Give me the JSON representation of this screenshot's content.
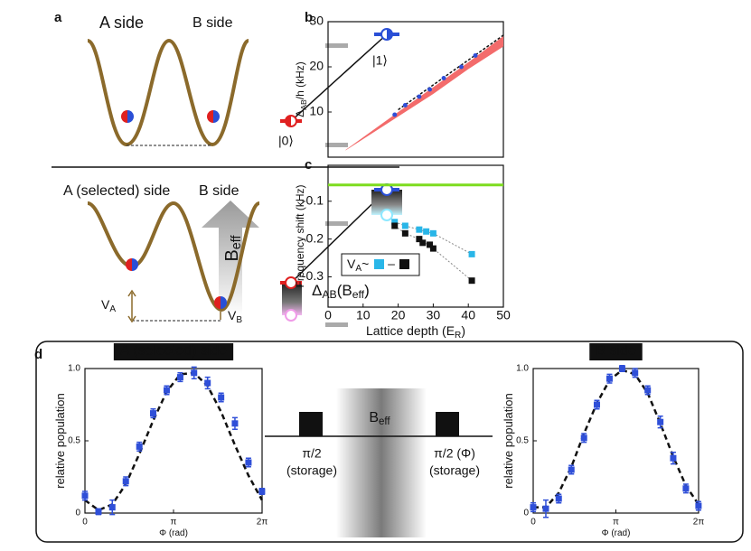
{
  "panel_labels": [
    "a",
    "b",
    "c",
    "d"
  ],
  "diagram": {
    "top": {
      "a_side": "A side",
      "b_side": "B side",
      "ket0": "|0⟩",
      "ket1": "|1⟩"
    },
    "bottom": {
      "a_side": "A (selected) side",
      "b_side": "B side",
      "field": [
        "B",
        "eff"
      ],
      "va": [
        "V",
        "A"
      ],
      "vb": [
        "V",
        "B"
      ],
      "splitting": [
        "Δ",
        "AB",
        "(B",
        "eff",
        ")"
      ]
    },
    "pulse": {
      "field": [
        "B",
        "eff"
      ],
      "pulse1": "π/2",
      "pulse1_note": "(storage)",
      "pulse2": "π/2 (Φ)",
      "pulse2_note": "(storage)"
    }
  },
  "chart_data": [
    {
      "type": "area",
      "ylabel": [
        "Δ",
        "AB",
        "/h (kHz)"
      ],
      "xlim": [
        0,
        50
      ],
      "ylim": [
        0,
        30
      ],
      "yticks": [
        10,
        20,
        30
      ],
      "series": [
        {
          "style": "band",
          "color": "#f36b6b",
          "x": [
            5,
            10,
            20,
            30,
            40,
            50
          ],
          "lower": [
            1.5,
            4,
            9,
            14,
            19.5,
            24.5
          ],
          "upper": [
            1.6,
            4.4,
            10,
            15.5,
            21,
            26.8
          ]
        },
        {
          "style": "dashed",
          "color": "#111111",
          "x": [
            20,
            50
          ],
          "values": [
            10.5,
            27
          ]
        },
        {
          "style": "markers",
          "shape": "circle",
          "color": "#2f4fd8",
          "x": [
            19,
            22,
            26,
            29,
            33,
            38,
            42
          ],
          "values": [
            9.4,
            11.5,
            13.4,
            15,
            17.5,
            20,
            22.5
          ]
        }
      ]
    },
    {
      "type": "scatter",
      "xlabel": [
        "Lattice depth (E",
        "R",
        ")"
      ],
      "ylabel": [
        "Frequency shift (kHz)"
      ],
      "xlim": [
        0,
        50
      ],
      "ylim": [
        -0.38,
        -0.005
      ],
      "xticks": [
        0,
        10,
        20,
        30,
        40,
        50
      ],
      "yticks": [
        -0.1,
        -0.2,
        -0.3
      ],
      "legend": {
        "text": [
          "V",
          "A",
          "~"
        ],
        "separator": "–"
      },
      "series": [
        {
          "style": "hline",
          "color": "#7ddc1f",
          "value": -0.057
        },
        {
          "style": "markers",
          "shape": "square",
          "color": "#29b6e8",
          "connect": true,
          "x": [
            19,
            22,
            26,
            28,
            30,
            41
          ],
          "values": [
            -0.155,
            -0.165,
            -0.175,
            -0.18,
            -0.185,
            -0.24
          ]
        },
        {
          "style": "markers",
          "shape": "square",
          "color": "#111111",
          "connect": true,
          "x": [
            19,
            22,
            26,
            27,
            29,
            30,
            41
          ],
          "values": [
            -0.165,
            -0.185,
            -0.2,
            -0.21,
            -0.215,
            -0.225,
            -0.31
          ]
        }
      ]
    },
    {
      "type": "scatter",
      "title": "A (selected) side",
      "xlabel": [
        "Φ (rad)"
      ],
      "ylabel": [
        "relative population"
      ],
      "xlim": [
        0,
        6.2832
      ],
      "ylim": [
        0,
        1
      ],
      "xticks": [
        0,
        {
          "value": 3.1416,
          "label": "π"
        },
        {
          "value": 6.2832,
          "label": "2π"
        }
      ],
      "yticks": [
        0,
        0.5,
        {
          "value": 1,
          "label": "1.0"
        }
      ],
      "series": [
        {
          "style": "dashed",
          "color": "#111111",
          "x": [
            0,
            0.48,
            0.97,
            1.45,
            1.93,
            2.42,
            2.9,
            3.38,
            3.87,
            4.35,
            4.83,
            5.32,
            5.8,
            6.28
          ],
          "values": [
            0.09,
            0.02,
            0.06,
            0.2,
            0.41,
            0.64,
            0.84,
            0.96,
            0.97,
            0.88,
            0.7,
            0.47,
            0.26,
            0.09
          ]
        },
        {
          "style": "markers",
          "shape": "square",
          "color": "#2f4fd8",
          "x": [
            0,
            0.48,
            0.97,
            1.45,
            1.93,
            2.42,
            2.9,
            3.38,
            3.87,
            4.35,
            4.83,
            5.32,
            5.8,
            6.28
          ],
          "values": [
            0.12,
            0.01,
            0.04,
            0.22,
            0.46,
            0.69,
            0.85,
            0.94,
            0.97,
            0.9,
            0.8,
            0.62,
            0.35,
            0.15
          ],
          "errors": [
            0.03,
            0.02,
            0.05,
            0.03,
            0.03,
            0.03,
            0.03,
            0.03,
            0.04,
            0.04,
            0.03,
            0.04,
            0.03,
            0.02
          ]
        }
      ]
    },
    {
      "type": "scatter",
      "title": "B side",
      "xlabel": [
        "Φ (rad)"
      ],
      "ylabel": [
        "relative population"
      ],
      "xlim": [
        0,
        6.2832
      ],
      "ylim": [
        0,
        1
      ],
      "xticks": [
        0,
        {
          "value": 3.1416,
          "label": "π"
        },
        {
          "value": 6.2832,
          "label": "2π"
        }
      ],
      "yticks": [
        0,
        0.5,
        {
          "value": 1,
          "label": "1.0"
        }
      ],
      "series": [
        {
          "style": "dashed",
          "color": "#111111",
          "x": [
            0,
            0.48,
            0.97,
            1.45,
            1.93,
            2.42,
            2.9,
            3.38,
            3.87,
            4.35,
            4.83,
            5.32,
            5.8,
            6.28
          ],
          "values": [
            0.04,
            0.04,
            0.14,
            0.32,
            0.55,
            0.76,
            0.92,
            0.99,
            0.96,
            0.83,
            0.62,
            0.39,
            0.19,
            0.06
          ]
        },
        {
          "style": "markers",
          "shape": "square",
          "color": "#2f4fd8",
          "x": [
            0,
            0.48,
            0.97,
            1.45,
            1.93,
            2.42,
            2.9,
            3.38,
            3.87,
            4.35,
            4.83,
            5.32,
            5.8,
            6.28
          ],
          "values": [
            0.04,
            0.03,
            0.1,
            0.3,
            0.52,
            0.75,
            0.93,
            1,
            0.97,
            0.85,
            0.63,
            0.38,
            0.17,
            0.05
          ],
          "errors": [
            0.03,
            0.06,
            0.03,
            0.03,
            0.03,
            0.03,
            0.03,
            0.02,
            0.03,
            0.03,
            0.04,
            0.04,
            0.03,
            0.03
          ]
        }
      ]
    }
  ]
}
